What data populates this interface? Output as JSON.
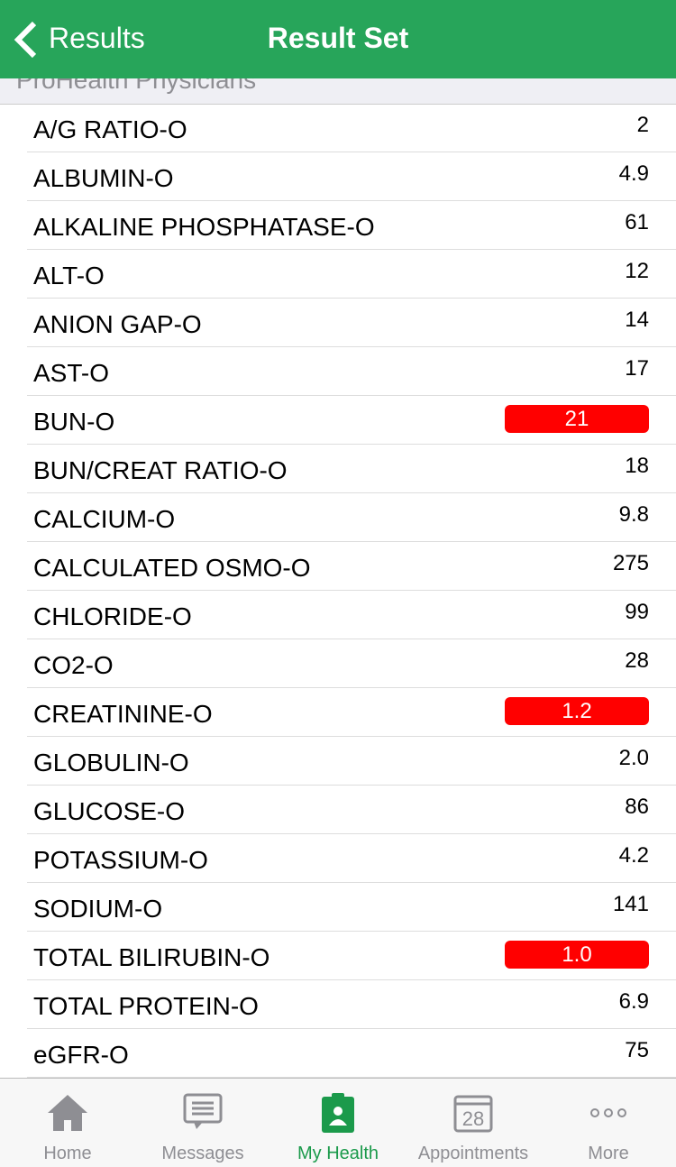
{
  "header": {
    "back": "Results",
    "title": "Result Set"
  },
  "section": {
    "title": "ProHealth Physicians"
  },
  "results": [
    {
      "name": "A/G RATIO-O",
      "value": "2",
      "flagged": false
    },
    {
      "name": "ALBUMIN-O",
      "value": "4.9",
      "flagged": false
    },
    {
      "name": "ALKALINE PHOSPHATASE-O",
      "value": "61",
      "flagged": false
    },
    {
      "name": "ALT-O",
      "value": "12",
      "flagged": false
    },
    {
      "name": "ANION GAP-O",
      "value": "14",
      "flagged": false
    },
    {
      "name": "AST-O",
      "value": "17",
      "flagged": false
    },
    {
      "name": "BUN-O",
      "value": "21",
      "flagged": true
    },
    {
      "name": "BUN/CREAT RATIO-O",
      "value": "18",
      "flagged": false
    },
    {
      "name": "CALCIUM-O",
      "value": "9.8",
      "flagged": false
    },
    {
      "name": "CALCULATED OSMO-O",
      "value": "275",
      "flagged": false
    },
    {
      "name": "CHLORIDE-O",
      "value": "99",
      "flagged": false
    },
    {
      "name": "CO2-O",
      "value": "28",
      "flagged": false
    },
    {
      "name": "CREATININE-O",
      "value": "1.2",
      "flagged": true
    },
    {
      "name": "GLOBULIN-O",
      "value": "2.0",
      "flagged": false
    },
    {
      "name": "GLUCOSE-O",
      "value": "86",
      "flagged": false
    },
    {
      "name": "POTASSIUM-O",
      "value": "4.2",
      "flagged": false
    },
    {
      "name": "SODIUM-O",
      "value": "141",
      "flagged": false
    },
    {
      "name": "TOTAL BILIRUBIN-O",
      "value": "1.0",
      "flagged": true
    },
    {
      "name": "TOTAL PROTEIN-O",
      "value": "6.9",
      "flagged": false
    },
    {
      "name": "eGFR-O",
      "value": "75",
      "flagged": false
    }
  ],
  "tabs": [
    {
      "label": "Home",
      "active": false
    },
    {
      "label": "Messages",
      "active": false
    },
    {
      "label": "My Health",
      "active": true
    },
    {
      "label": "Appointments",
      "active": false,
      "icon_text": "28"
    },
    {
      "label": "More",
      "active": false
    }
  ]
}
